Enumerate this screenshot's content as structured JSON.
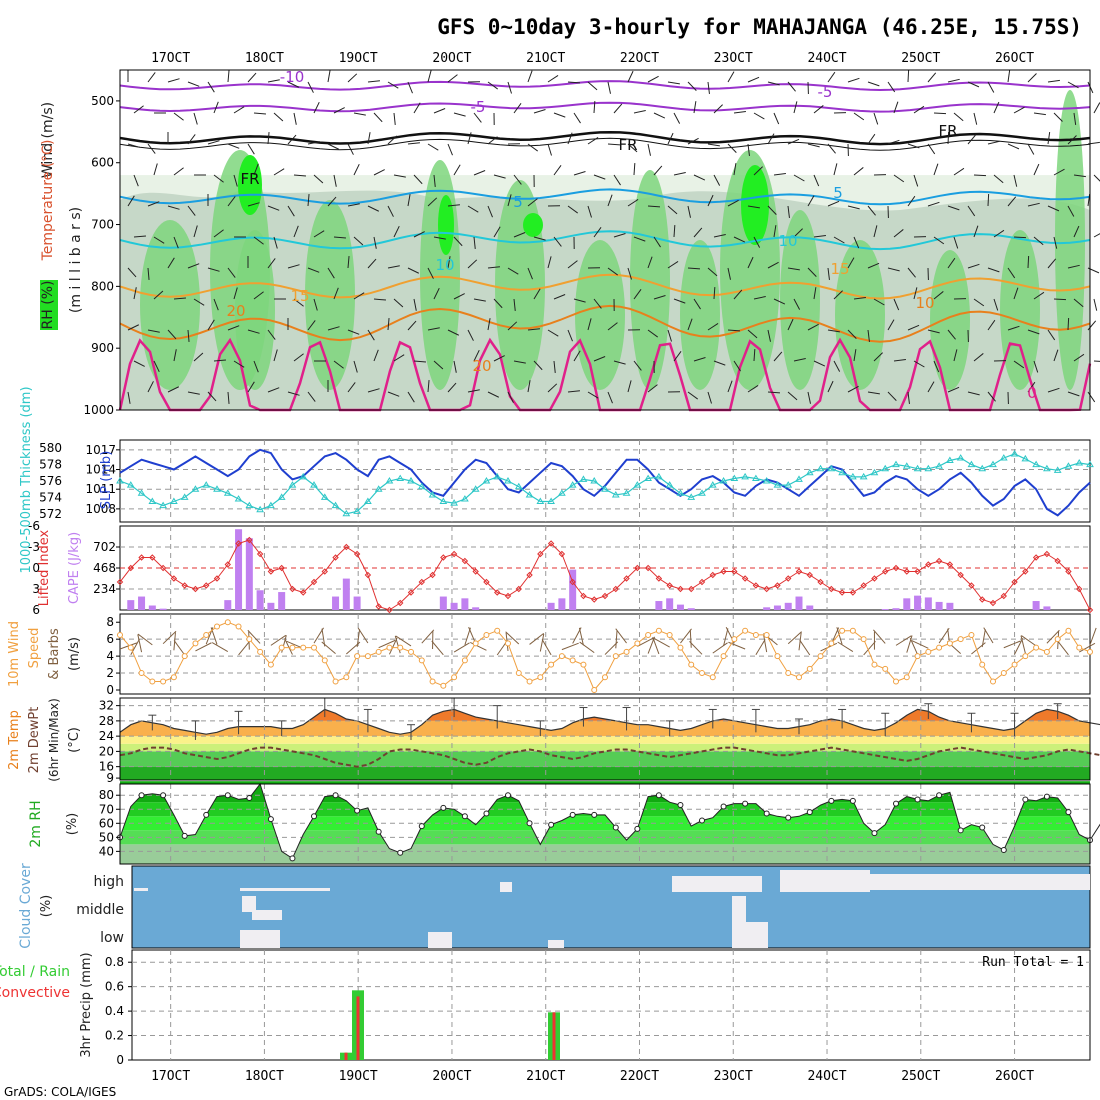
{
  "title": "GFS 0~10day 3-hourly for MAHAJANGA (46.25E, 15.75S)",
  "credit": "GrADS: COLA/IGES",
  "colors": {
    "rh_light": "#e8f2e6",
    "rh_mid": "#c6d8c8",
    "rh_green": "#7ed67c",
    "rh_bright": "#22ee22",
    "temp_purple": "#9933cc",
    "temp_black": "#111111",
    "temp_blue": "#1a9ee0",
    "temp_cyan": "#22c8d8",
    "temp_orange": "#f0a030",
    "temp_dark_orange": "#e8801c",
    "temp_magenta": "#e0208a",
    "slp": "#1f3fcf",
    "thickness": "#2ec7c7",
    "lifted_index": "#e03030",
    "cape": "#c080f0",
    "wind_speed": "#f0a040",
    "barbs": "#806040",
    "dewpoint": "#704030",
    "cloud_blue": "#6aa9d5",
    "cloud_white": "#f0eef2",
    "precip_total": "#33cc33",
    "precip_conv": "#ee3333"
  },
  "time_axis": {
    "ticks": [
      "17OCT",
      "18OCT",
      "19OCT",
      "20OCT",
      "21OCT",
      "22OCT",
      "23OCT",
      "24OCT",
      "25OCT",
      "26OCT"
    ]
  },
  "panels": {
    "profile": {
      "label_wind": "Wind (m/s)",
      "label_temp": "Temperature (°C)",
      "label_rh": "RH (%)",
      "label_unit": "(m i l l i b a r s)",
      "y_ticks": [
        "500",
        "600",
        "700",
        "800",
        "900",
        "1000"
      ],
      "contour_labels": [
        "-10",
        "-5",
        "-5",
        "FR",
        "FR",
        "FR",
        "5",
        "5",
        "10",
        "10",
        "15",
        "15",
        "20",
        "20",
        "10",
        "0"
      ]
    },
    "slp": {
      "label_thick": "1000-500mb Thickness (dm)",
      "label_slp": "SLP (mb)",
      "thick_ticks": [
        "580",
        "578",
        "576",
        "574",
        "572"
      ],
      "slp_ticks": [
        "1017",
        "1014",
        "1011",
        "1008"
      ]
    },
    "cape": {
      "label_li": "Lifted Index",
      "label_cape": "CAPE (J/kg)",
      "li_ticks": [
        "-6",
        "-3",
        "0",
        "3",
        "6"
      ],
      "cape_ticks": [
        "702",
        "468",
        "234"
      ]
    },
    "wind": {
      "label_a": "10m Wind",
      "label_b": "Speed",
      "label_c": "& Barbs",
      "label_unit": "(m/s)",
      "y_ticks": [
        "8",
        "6",
        "4",
        "2",
        "0"
      ]
    },
    "temp2m": {
      "label_a": "2m Temp",
      "label_b": "2m DewPt",
      "label_c": "(6hr Min/Max)",
      "label_unit": "(°C)",
      "y_ticks": [
        "32",
        "28",
        "24",
        "20",
        "16",
        "9"
      ]
    },
    "rh2m": {
      "label": "2m RH",
      "label_unit": "(%)",
      "y_ticks": [
        "80",
        "70",
        "60",
        "50",
        "40"
      ]
    },
    "cloud": {
      "label": "Cloud Cover",
      "label_unit": "(%)",
      "levels": [
        "high",
        "middle",
        "low"
      ]
    },
    "precip": {
      "label_a": "Total / Rain",
      "label_b": "Convective",
      "label_c": "3hr Precip (mm)",
      "run_total": "Run Total = 1",
      "y_ticks": [
        "0.8",
        "0.6",
        "0.4",
        "0.2",
        "0"
      ]
    }
  },
  "chart_data": [
    {
      "type": "line",
      "title": "1000-500mb Thickness / SLP",
      "series": [
        {
          "name": "SLP (mb)",
          "values": [
            1013.5,
            1014.5,
            1015.5,
            1015,
            1014.5,
            1014,
            1015,
            1016,
            1015,
            1014,
            1013,
            1014,
            1016,
            1017,
            1016.5,
            1014,
            1012.5,
            1013,
            1014.5,
            1016,
            1016.5,
            1015.5,
            1014,
            1013,
            1015.5,
            1016,
            1015,
            1014,
            1012,
            1010.5,
            1010,
            1012,
            1014,
            1015.5,
            1015,
            1013,
            1011,
            1010.5,
            1012,
            1013.5,
            1015,
            1014.5,
            1013,
            1011,
            1010,
            1011.5,
            1013.5,
            1015.5,
            1015.5,
            1014,
            1012,
            1011,
            1010,
            1011,
            1012.5,
            1013,
            1012,
            1010.5,
            1010,
            1011.5,
            1012.5,
            1012,
            1011,
            1010,
            1011.5,
            1013,
            1014.5,
            1014,
            1012,
            1010,
            1010.5,
            1012,
            1013,
            1012.5,
            1011,
            1010,
            1011,
            1012.5,
            1013.5,
            1012,
            1010,
            1008.5,
            1009.5,
            1011.5,
            1012.5,
            1011,
            1008,
            1007,
            1008.5,
            1010.5,
            1012
          ]
        },
        {
          "name": "1000-500mb Thickness (dm)",
          "values": [
            576,
            575.5,
            574.5,
            573.5,
            573,
            573.5,
            574,
            575,
            575.5,
            575,
            574.5,
            573.8,
            573,
            572.5,
            573,
            574,
            575.5,
            576.5,
            575.5,
            574,
            573,
            572,
            572.3,
            573.5,
            575,
            576,
            576.3,
            576,
            575.3,
            574.3,
            573.5,
            573.3,
            573.8,
            575,
            576,
            576.5,
            576,
            575.3,
            574.3,
            573.5,
            573.5,
            574.5,
            575.5,
            576.2,
            576,
            575,
            574.3,
            574.5,
            575.5,
            576.3,
            576.5,
            575.5,
            574.5,
            574,
            574.5,
            575.5,
            576,
            576.3,
            576.5,
            576.3,
            576,
            575.5,
            575.5,
            576.2,
            577,
            577.5,
            577.5,
            577,
            576.5,
            576.5,
            577,
            577.5,
            578,
            577.8,
            577.5,
            577.5,
            577.8,
            578.5,
            578.8,
            578,
            577.5,
            578,
            578.8,
            579.3,
            578.7,
            578,
            577.5,
            577.3,
            577.8,
            578.2,
            578
          ]
        }
      ]
    },
    {
      "type": "bar",
      "title": "CAPE / Lifted Index",
      "series": [
        {
          "name": "CAPE (J/kg)",
          "values": [
            0,
            110,
            150,
            50,
            15,
            0,
            0,
            0,
            0,
            0,
            110,
            900,
            800,
            220,
            80,
            200,
            0,
            0,
            0,
            0,
            150,
            350,
            150,
            0,
            0,
            0,
            0,
            0,
            0,
            0,
            150,
            80,
            130,
            30,
            0,
            0,
            0,
            0,
            0,
            0,
            80,
            130,
            450,
            0,
            0,
            0,
            0,
            0,
            0,
            0,
            100,
            130,
            60,
            20,
            0,
            0,
            0,
            0,
            0,
            0,
            30,
            50,
            80,
            150,
            50,
            0,
            0,
            0,
            0,
            0,
            0,
            10,
            20,
            130,
            160,
            140,
            90,
            80,
            0,
            0,
            0,
            0,
            0,
            0,
            0,
            100,
            40,
            0,
            0,
            0,
            0,
            0
          ]
        },
        {
          "name": "Lifted Index",
          "values": [
            2,
            0,
            -1.5,
            -1.5,
            0,
            1.5,
            2.5,
            3,
            2.5,
            1.5,
            -0.5,
            -3.5,
            -4,
            -2,
            0.5,
            0,
            3,
            3.5,
            2,
            0.5,
            -1.5,
            -3,
            -2,
            1,
            5.5,
            6,
            5,
            3.5,
            2,
            1,
            -1.5,
            -2,
            -1,
            0.5,
            2,
            3.5,
            4,
            3,
            1,
            -2,
            -3.5,
            -2,
            2,
            4,
            4.5,
            4,
            3,
            1.5,
            0,
            0,
            1.5,
            2.5,
            3,
            3,
            2,
            1,
            0.5,
            0.5,
            1.5,
            2.5,
            3,
            2.5,
            1.5,
            0.5,
            1,
            2,
            3,
            3.5,
            3.5,
            2.5,
            1.5,
            0.5,
            0,
            0.5,
            0.5,
            -0.5,
            -1,
            -0.5,
            1,
            2.5,
            4.5,
            5,
            4,
            2,
            0.5,
            -1.5,
            -2,
            -1,
            0.5,
            3,
            6
          ]
        }
      ]
    },
    {
      "type": "line",
      "title": "10m Wind Speed",
      "series": [
        {
          "name": "Speed (m/s)",
          "values": [
            6.5,
            5,
            2,
            1,
            1,
            1.5,
            4,
            5.5,
            6.5,
            7.5,
            8,
            7.5,
            6,
            4.5,
            3,
            5,
            5,
            5,
            5,
            3.5,
            1,
            1.5,
            4,
            4,
            4.5,
            5,
            5,
            4.5,
            3.5,
            1,
            0.5,
            1.5,
            3.5,
            5.5,
            6.5,
            7,
            5.5,
            2,
            1,
            1.5,
            3,
            4,
            3.5,
            3,
            0,
            1.5,
            4,
            4.5,
            5.5,
            6.5,
            7,
            6.5,
            5,
            3,
            2,
            1.5,
            4,
            6,
            7,
            6.5,
            6.5,
            4,
            2,
            1.5,
            2.5,
            4,
            5.5,
            7,
            7,
            6,
            3,
            2.5,
            1,
            1.5,
            4,
            4.5,
            5,
            5.5,
            6,
            6.5,
            3,
            1,
            2,
            3,
            4,
            5,
            4.5,
            6,
            7,
            5,
            4.5
          ]
        }
      ]
    },
    {
      "type": "area",
      "title": "2m Temp / 2m DewPt",
      "series": [
        {
          "name": "2m Temp (°C)",
          "values": [
            25,
            27,
            28,
            27.5,
            27,
            26,
            25.5,
            25,
            24.5,
            25,
            26,
            26.5,
            26.5,
            26.5,
            26.5,
            26,
            26,
            27,
            29,
            31,
            30,
            28.5,
            28,
            27,
            26,
            25,
            24.5,
            25,
            27,
            29.5,
            30.5,
            31,
            30,
            29,
            28.5,
            28,
            27.5,
            27,
            26.5,
            26,
            25.5,
            26,
            27.5,
            28.5,
            29,
            28.5,
            28,
            27.5,
            27,
            27,
            26.5,
            26,
            25.5,
            26,
            27,
            28,
            28.5,
            28,
            27.5,
            27,
            26.5,
            26,
            26,
            26.5,
            27,
            28,
            28.5,
            28,
            27,
            26,
            25.5,
            26,
            27.5,
            29.5,
            31,
            30.5,
            29,
            28,
            27.5,
            27,
            26.5,
            26,
            25.5,
            26,
            28,
            30,
            31,
            30.5,
            29.5,
            28,
            27.5,
            27,
            26.5,
            26,
            26,
            27.5,
            30
          ]
        },
        {
          "name": "2m DewPt (°C)",
          "values": [
            19,
            19.5,
            20.5,
            21,
            21,
            20.5,
            19.5,
            19,
            18.5,
            18,
            18.5,
            19.5,
            20.5,
            21,
            21,
            20.5,
            20,
            19.5,
            19,
            18,
            17,
            16.5,
            16,
            16.5,
            18,
            20,
            20.5,
            20.5,
            20,
            19.5,
            19,
            18,
            17,
            16.5,
            17,
            18.5,
            19.5,
            20,
            20.5,
            20,
            19,
            18.5,
            18,
            18.5,
            19.5,
            20,
            20.5,
            20.5,
            20,
            19.5,
            19,
            18.5,
            19,
            19.5,
            20,
            20.5,
            21,
            21,
            20.5,
            20,
            19.5,
            19,
            19,
            19.5,
            20,
            20.5,
            21,
            20.5,
            20,
            19.5,
            19,
            18.5,
            18,
            17.5,
            18,
            19,
            20,
            20.5,
            21,
            20.5,
            20,
            19.5,
            19,
            18.5,
            18,
            18.5,
            19,
            20,
            20.5,
            20,
            19.5,
            19,
            18,
            16.5,
            16
          ]
        }
      ]
    },
    {
      "type": "area",
      "title": "2m RH",
      "series": [
        {
          "name": "2m RH (%)",
          "values": [
            50,
            72,
            80,
            81,
            80,
            66,
            51,
            52,
            66,
            79,
            80,
            77,
            78,
            88,
            63,
            40,
            35,
            52,
            65,
            79,
            80,
            76,
            69,
            71,
            54,
            42,
            39,
            42,
            58,
            66,
            71,
            70,
            65,
            59,
            67,
            77,
            80,
            76,
            60,
            45,
            59,
            62,
            66,
            67,
            66,
            66,
            57,
            48,
            56,
            79,
            80,
            75,
            73,
            58,
            62,
            64,
            72,
            74,
            74,
            74,
            67,
            65,
            64,
            65,
            68,
            73,
            76,
            77,
            76,
            60,
            53,
            59,
            74,
            79,
            77,
            76,
            80,
            82,
            55,
            59,
            57,
            45,
            41,
            58,
            77,
            76,
            79,
            78,
            68,
            52,
            48,
            60,
            76,
            78,
            82,
            58,
            43
          ]
        }
      ]
    },
    {
      "type": "bar",
      "title": "3hr Precip",
      "series": [
        {
          "name": "Total / Rain (mm)",
          "values": [
            0.06,
            0.57,
            0.39
          ]
        },
        {
          "name": "Convective (mm)",
          "values": [
            0.06,
            0.52,
            0.39
          ]
        }
      ],
      "categories": [
        "18OCT 21Z",
        "19OCT 00Z",
        "21OCT 00Z"
      ],
      "ylim": [
        0,
        0.9
      ]
    }
  ]
}
